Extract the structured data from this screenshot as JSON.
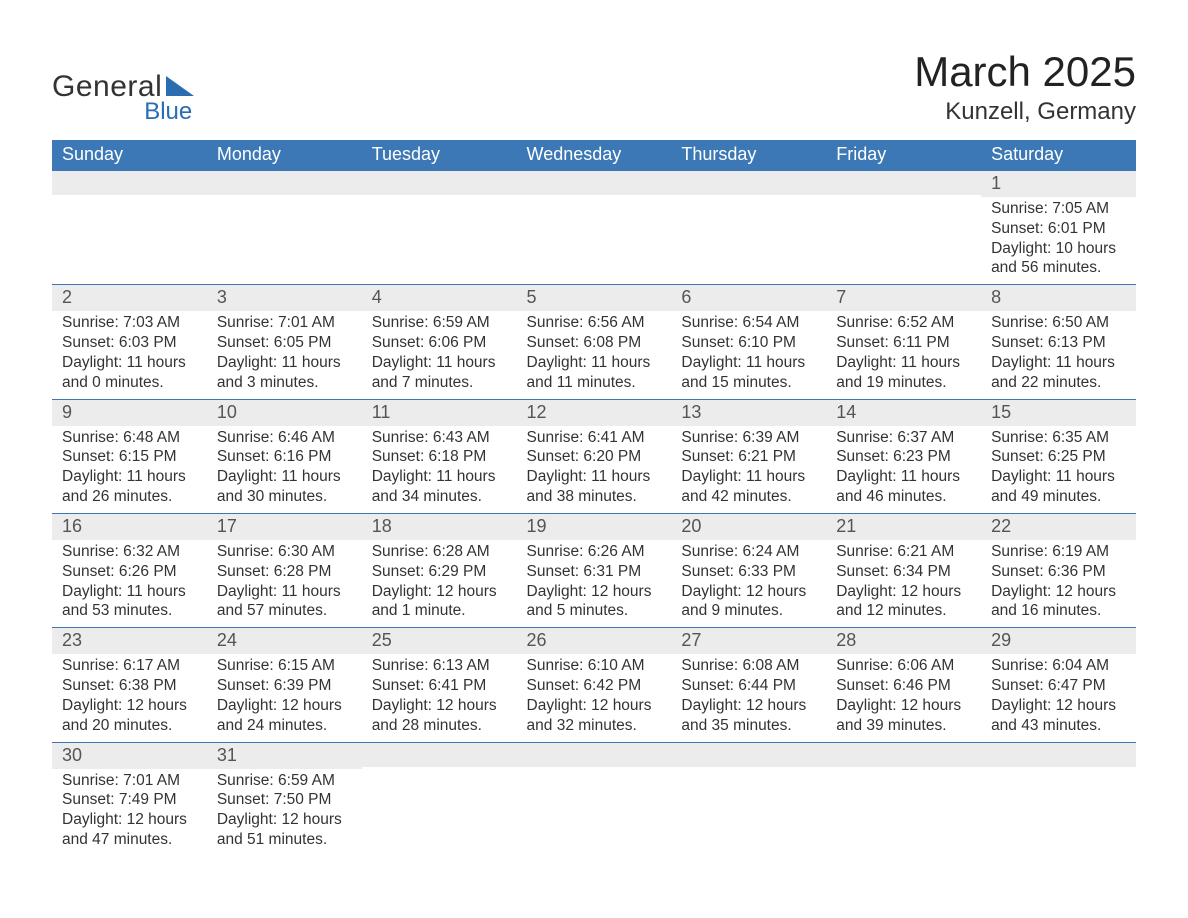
{
  "brand": {
    "text_general": "General",
    "text_blue": "Blue"
  },
  "header": {
    "month_title": "March 2025",
    "location": "Kunzell, Germany"
  },
  "colors": {
    "header_bg": "#3b78b5",
    "header_text": "#ffffff",
    "band_bg": "#ececec",
    "row_border": "#3b78b5",
    "logo_accent": "#2a6db0",
    "body_text": "#333333",
    "background": "#ffffff"
  },
  "typography": {
    "month_title_fontsize": 42,
    "location_fontsize": 24,
    "day_header_fontsize": 18,
    "daynum_fontsize": 18,
    "cell_fontsize": 15.5,
    "font_family": "Arial"
  },
  "calendar": {
    "day_headers": [
      "Sunday",
      "Monday",
      "Tuesday",
      "Wednesday",
      "Thursday",
      "Friday",
      "Saturday"
    ],
    "weeks": [
      [
        {
          "n": "",
          "sunrise": "",
          "sunset": "",
          "daylight": ""
        },
        {
          "n": "",
          "sunrise": "",
          "sunset": "",
          "daylight": ""
        },
        {
          "n": "",
          "sunrise": "",
          "sunset": "",
          "daylight": ""
        },
        {
          "n": "",
          "sunrise": "",
          "sunset": "",
          "daylight": ""
        },
        {
          "n": "",
          "sunrise": "",
          "sunset": "",
          "daylight": ""
        },
        {
          "n": "",
          "sunrise": "",
          "sunset": "",
          "daylight": ""
        },
        {
          "n": "1",
          "sunrise": "Sunrise: 7:05 AM",
          "sunset": "Sunset: 6:01 PM",
          "daylight": "Daylight: 10 hours and 56 minutes."
        }
      ],
      [
        {
          "n": "2",
          "sunrise": "Sunrise: 7:03 AM",
          "sunset": "Sunset: 6:03 PM",
          "daylight": "Daylight: 11 hours and 0 minutes."
        },
        {
          "n": "3",
          "sunrise": "Sunrise: 7:01 AM",
          "sunset": "Sunset: 6:05 PM",
          "daylight": "Daylight: 11 hours and 3 minutes."
        },
        {
          "n": "4",
          "sunrise": "Sunrise: 6:59 AM",
          "sunset": "Sunset: 6:06 PM",
          "daylight": "Daylight: 11 hours and 7 minutes."
        },
        {
          "n": "5",
          "sunrise": "Sunrise: 6:56 AM",
          "sunset": "Sunset: 6:08 PM",
          "daylight": "Daylight: 11 hours and 11 minutes."
        },
        {
          "n": "6",
          "sunrise": "Sunrise: 6:54 AM",
          "sunset": "Sunset: 6:10 PM",
          "daylight": "Daylight: 11 hours and 15 minutes."
        },
        {
          "n": "7",
          "sunrise": "Sunrise: 6:52 AM",
          "sunset": "Sunset: 6:11 PM",
          "daylight": "Daylight: 11 hours and 19 minutes."
        },
        {
          "n": "8",
          "sunrise": "Sunrise: 6:50 AM",
          "sunset": "Sunset: 6:13 PM",
          "daylight": "Daylight: 11 hours and 22 minutes."
        }
      ],
      [
        {
          "n": "9",
          "sunrise": "Sunrise: 6:48 AM",
          "sunset": "Sunset: 6:15 PM",
          "daylight": "Daylight: 11 hours and 26 minutes."
        },
        {
          "n": "10",
          "sunrise": "Sunrise: 6:46 AM",
          "sunset": "Sunset: 6:16 PM",
          "daylight": "Daylight: 11 hours and 30 minutes."
        },
        {
          "n": "11",
          "sunrise": "Sunrise: 6:43 AM",
          "sunset": "Sunset: 6:18 PM",
          "daylight": "Daylight: 11 hours and 34 minutes."
        },
        {
          "n": "12",
          "sunrise": "Sunrise: 6:41 AM",
          "sunset": "Sunset: 6:20 PM",
          "daylight": "Daylight: 11 hours and 38 minutes."
        },
        {
          "n": "13",
          "sunrise": "Sunrise: 6:39 AM",
          "sunset": "Sunset: 6:21 PM",
          "daylight": "Daylight: 11 hours and 42 minutes."
        },
        {
          "n": "14",
          "sunrise": "Sunrise: 6:37 AM",
          "sunset": "Sunset: 6:23 PM",
          "daylight": "Daylight: 11 hours and 46 minutes."
        },
        {
          "n": "15",
          "sunrise": "Sunrise: 6:35 AM",
          "sunset": "Sunset: 6:25 PM",
          "daylight": "Daylight: 11 hours and 49 minutes."
        }
      ],
      [
        {
          "n": "16",
          "sunrise": "Sunrise: 6:32 AM",
          "sunset": "Sunset: 6:26 PM",
          "daylight": "Daylight: 11 hours and 53 minutes."
        },
        {
          "n": "17",
          "sunrise": "Sunrise: 6:30 AM",
          "sunset": "Sunset: 6:28 PM",
          "daylight": "Daylight: 11 hours and 57 minutes."
        },
        {
          "n": "18",
          "sunrise": "Sunrise: 6:28 AM",
          "sunset": "Sunset: 6:29 PM",
          "daylight": "Daylight: 12 hours and 1 minute."
        },
        {
          "n": "19",
          "sunrise": "Sunrise: 6:26 AM",
          "sunset": "Sunset: 6:31 PM",
          "daylight": "Daylight: 12 hours and 5 minutes."
        },
        {
          "n": "20",
          "sunrise": "Sunrise: 6:24 AM",
          "sunset": "Sunset: 6:33 PM",
          "daylight": "Daylight: 12 hours and 9 minutes."
        },
        {
          "n": "21",
          "sunrise": "Sunrise: 6:21 AM",
          "sunset": "Sunset: 6:34 PM",
          "daylight": "Daylight: 12 hours and 12 minutes."
        },
        {
          "n": "22",
          "sunrise": "Sunrise: 6:19 AM",
          "sunset": "Sunset: 6:36 PM",
          "daylight": "Daylight: 12 hours and 16 minutes."
        }
      ],
      [
        {
          "n": "23",
          "sunrise": "Sunrise: 6:17 AM",
          "sunset": "Sunset: 6:38 PM",
          "daylight": "Daylight: 12 hours and 20 minutes."
        },
        {
          "n": "24",
          "sunrise": "Sunrise: 6:15 AM",
          "sunset": "Sunset: 6:39 PM",
          "daylight": "Daylight: 12 hours and 24 minutes."
        },
        {
          "n": "25",
          "sunrise": "Sunrise: 6:13 AM",
          "sunset": "Sunset: 6:41 PM",
          "daylight": "Daylight: 12 hours and 28 minutes."
        },
        {
          "n": "26",
          "sunrise": "Sunrise: 6:10 AM",
          "sunset": "Sunset: 6:42 PM",
          "daylight": "Daylight: 12 hours and 32 minutes."
        },
        {
          "n": "27",
          "sunrise": "Sunrise: 6:08 AM",
          "sunset": "Sunset: 6:44 PM",
          "daylight": "Daylight: 12 hours and 35 minutes."
        },
        {
          "n": "28",
          "sunrise": "Sunrise: 6:06 AM",
          "sunset": "Sunset: 6:46 PM",
          "daylight": "Daylight: 12 hours and 39 minutes."
        },
        {
          "n": "29",
          "sunrise": "Sunrise: 6:04 AM",
          "sunset": "Sunset: 6:47 PM",
          "daylight": "Daylight: 12 hours and 43 minutes."
        }
      ],
      [
        {
          "n": "30",
          "sunrise": "Sunrise: 7:01 AM",
          "sunset": "Sunset: 7:49 PM",
          "daylight": "Daylight: 12 hours and 47 minutes."
        },
        {
          "n": "31",
          "sunrise": "Sunrise: 6:59 AM",
          "sunset": "Sunset: 7:50 PM",
          "daylight": "Daylight: 12 hours and 51 minutes."
        },
        {
          "n": "",
          "sunrise": "",
          "sunset": "",
          "daylight": ""
        },
        {
          "n": "",
          "sunrise": "",
          "sunset": "",
          "daylight": ""
        },
        {
          "n": "",
          "sunrise": "",
          "sunset": "",
          "daylight": ""
        },
        {
          "n": "",
          "sunrise": "",
          "sunset": "",
          "daylight": ""
        },
        {
          "n": "",
          "sunrise": "",
          "sunset": "",
          "daylight": ""
        }
      ]
    ]
  }
}
